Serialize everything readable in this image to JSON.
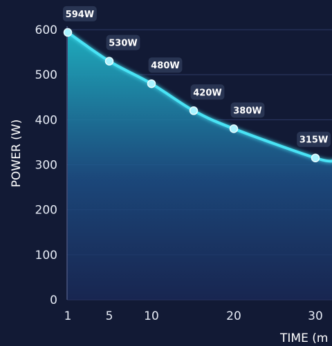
{
  "chart_data": {
    "type": "area",
    "xlabel": "TIME (m",
    "ylabel": "POWER (W)",
    "x": [
      1,
      5,
      10,
      15,
      20,
      30
    ],
    "values": [
      594,
      530,
      480,
      420,
      380,
      315
    ],
    "data_labels": [
      "594W",
      "530W",
      "480W",
      "420W",
      "380W",
      "315W"
    ],
    "x_ticks": [
      1,
      5,
      10,
      20,
      30
    ],
    "y_ticks": [
      0,
      100,
      200,
      300,
      400,
      500,
      600
    ],
    "ylim": [
      0,
      600
    ],
    "grid": true,
    "legend": "none",
    "colors": {
      "background": "#121a35",
      "line": "#48e3f5",
      "marker": "#a9f3ff",
      "area_top": "#1fb4c4",
      "area_bottom": "#1a2a5a",
      "grid": "#2e3a66",
      "label_bg": "#2c3956"
    }
  }
}
